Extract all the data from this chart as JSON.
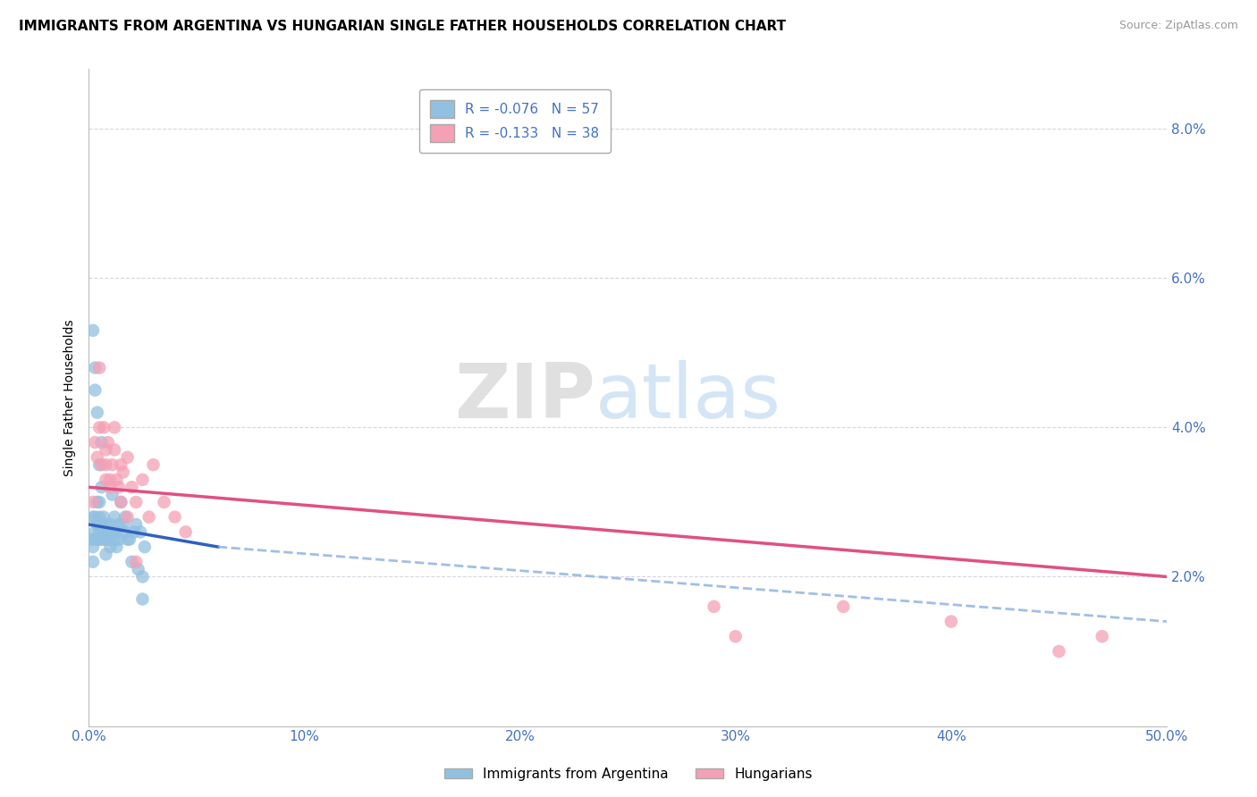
{
  "title": "IMMIGRANTS FROM ARGENTINA VS HUNGARIAN SINGLE FATHER HOUSEHOLDS CORRELATION CHART",
  "source": "Source: ZipAtlas.com",
  "xlabel": "",
  "ylabel": "Single Father Households",
  "legend1_label": "Immigrants from Argentina",
  "legend2_label": "Hungarians",
  "r1": -0.076,
  "n1": 57,
  "r2": -0.133,
  "n2": 38,
  "xlim": [
    0.0,
    0.5
  ],
  "ylim": [
    0.0,
    0.088
  ],
  "xticks": [
    0.0,
    0.1,
    0.2,
    0.3,
    0.4,
    0.5
  ],
  "xtick_labels": [
    "0.0%",
    "10%",
    "20%",
    "30%",
    "40%",
    "50.0%"
  ],
  "yticks": [
    0.0,
    0.02,
    0.04,
    0.06,
    0.08
  ],
  "ytick_labels": [
    "",
    "2.0%",
    "4.0%",
    "6.0%",
    "8.0%"
  ],
  "color_blue": "#92C0E0",
  "color_pink": "#F4A0B5",
  "line_blue_solid": "#3060C0",
  "line_blue_dash": "#8AB0E0",
  "line_pink": "#E05080",
  "watermark_zip": "ZIP",
  "watermark_atlas": "atlas",
  "blue_scatter_x": [
    0.001,
    0.002,
    0.002,
    0.002,
    0.003,
    0.003,
    0.003,
    0.004,
    0.004,
    0.004,
    0.005,
    0.005,
    0.005,
    0.005,
    0.006,
    0.006,
    0.006,
    0.007,
    0.007,
    0.007,
    0.008,
    0.008,
    0.008,
    0.009,
    0.009,
    0.01,
    0.01,
    0.01,
    0.011,
    0.011,
    0.012,
    0.012,
    0.012,
    0.013,
    0.013,
    0.014,
    0.014,
    0.015,
    0.016,
    0.017,
    0.017,
    0.018,
    0.019,
    0.02,
    0.021,
    0.022,
    0.023,
    0.024,
    0.025,
    0.026,
    0.002,
    0.003,
    0.003,
    0.004,
    0.005,
    0.006,
    0.025
  ],
  "blue_scatter_y": [
    0.025,
    0.028,
    0.024,
    0.022,
    0.026,
    0.025,
    0.028,
    0.027,
    0.025,
    0.03,
    0.026,
    0.025,
    0.028,
    0.03,
    0.027,
    0.025,
    0.032,
    0.026,
    0.028,
    0.025,
    0.027,
    0.025,
    0.023,
    0.026,
    0.025,
    0.027,
    0.025,
    0.024,
    0.031,
    0.026,
    0.026,
    0.025,
    0.028,
    0.024,
    0.026,
    0.025,
    0.027,
    0.03,
    0.027,
    0.026,
    0.028,
    0.025,
    0.025,
    0.022,
    0.026,
    0.027,
    0.021,
    0.026,
    0.02,
    0.024,
    0.053,
    0.048,
    0.045,
    0.042,
    0.035,
    0.038,
    0.017
  ],
  "pink_scatter_x": [
    0.002,
    0.003,
    0.004,
    0.005,
    0.006,
    0.007,
    0.008,
    0.008,
    0.009,
    0.01,
    0.011,
    0.012,
    0.013,
    0.014,
    0.015,
    0.016,
    0.018,
    0.02,
    0.022,
    0.025,
    0.028,
    0.03,
    0.035,
    0.04,
    0.045,
    0.005,
    0.008,
    0.01,
    0.012,
    0.015,
    0.018,
    0.022,
    0.29,
    0.3,
    0.35,
    0.4,
    0.45,
    0.47
  ],
  "pink_scatter_y": [
    0.03,
    0.038,
    0.036,
    0.048,
    0.035,
    0.04,
    0.037,
    0.033,
    0.038,
    0.032,
    0.035,
    0.037,
    0.033,
    0.032,
    0.035,
    0.034,
    0.036,
    0.032,
    0.03,
    0.033,
    0.028,
    0.035,
    0.03,
    0.028,
    0.026,
    0.04,
    0.035,
    0.033,
    0.04,
    0.03,
    0.028,
    0.022,
    0.016,
    0.012,
    0.016,
    0.014,
    0.01,
    0.012
  ],
  "blue_trendline_x": [
    0.0,
    0.06
  ],
  "blue_trendline_y": [
    0.027,
    0.024
  ],
  "blue_dashline_x": [
    0.06,
    0.5
  ],
  "blue_dashline_y": [
    0.024,
    0.014
  ],
  "pink_trendline_x": [
    0.0,
    0.5
  ],
  "pink_trendline_y": [
    0.032,
    0.02
  ]
}
